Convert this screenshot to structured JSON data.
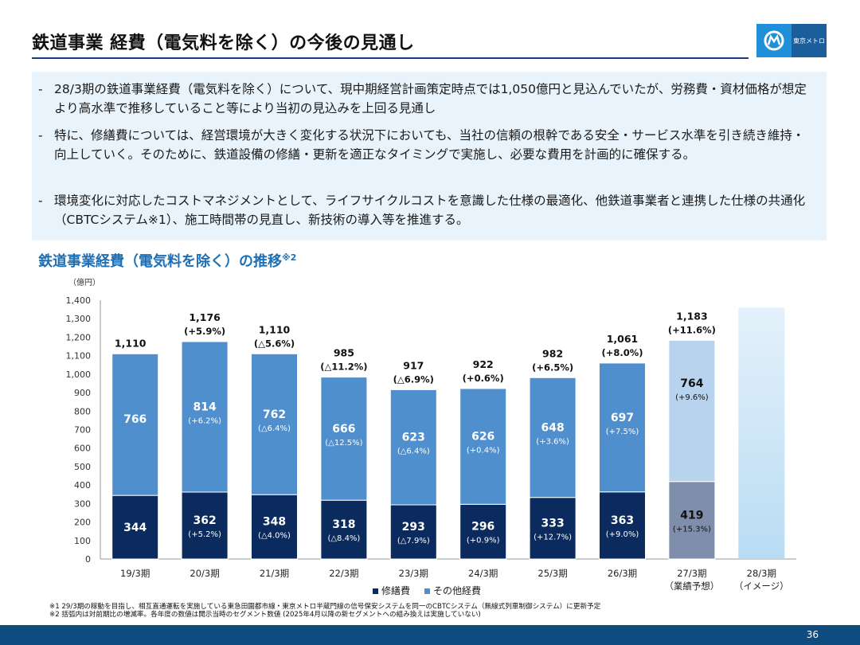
{
  "header": {
    "title": "鉄道事業 経費（電気料を除く）の今後の見通し",
    "logo_text": "東京メトロ"
  },
  "summary": {
    "dash": "-",
    "bullets": [
      "28/3期の鉄道事業経費（電気料を除く）について、現中期経営計画策定時点では1,050億円と見込んでいたが、労務費・資材価格が想定より高水準で推移していること等により当初の見込みを上回る見通し",
      "特に、修繕費については、経営環境が大きく変化する状況下においても、当社の信頼の根幹である安全・サービス水準を引き続き維持・向上していく。そのために、鉄道設備の修繕・更新を適正なタイミングで実施し、必要な費用を計画的に確保する。",
      "環境変化に対応したコストマネジメントとして、ライフサイクルコストを意識した仕様の最適化、他鉄道事業者と連携した仕様の共通化（CBTCシステム※1）、施工時間帯の見直し、新技術の導入等を推進する。"
    ]
  },
  "chart_title": "鉄道事業経費（電気料を除く）の推移",
  "chart_title_note": "※2",
  "chart_data": {
    "type": "bar",
    "stacked": true,
    "unit_label": "（億円）",
    "ylim": [
      0,
      1400
    ],
    "yticks": [
      "0",
      "100",
      "200",
      "300",
      "400",
      "500",
      "600",
      "700",
      "800",
      "900",
      "1,000",
      "1,100",
      "1,200",
      "1,300",
      "1,400"
    ],
    "categories": [
      "19/3期",
      "20/3期",
      "21/3期",
      "22/3期",
      "23/3期",
      "24/3期",
      "25/3期",
      "26/3期",
      "27/3期",
      "28/3期"
    ],
    "category_sublabels": [
      "",
      "",
      "",
      "",
      "",
      "",
      "",
      "",
      "（業績予想）",
      "（イメージ）"
    ],
    "series": [
      {
        "name": "修繕費",
        "values": [
          344,
          362,
          348,
          318,
          293,
          296,
          333,
          363,
          419,
          null
        ],
        "labels": [
          "344",
          "362",
          "348",
          "318",
          "293",
          "296",
          "333",
          "363",
          "419",
          ""
        ],
        "changes": [
          "",
          "(+5.2%)",
          "(△4.0%)",
          "(△8.4%)",
          "(△7.9%)",
          "(+0.9%)",
          "(+12.7%)",
          "(+9.0%)",
          "(+15.3%)",
          ""
        ]
      },
      {
        "name": "その他経費",
        "values": [
          766,
          814,
          762,
          666,
          623,
          626,
          648,
          697,
          764,
          null
        ],
        "labels": [
          "766",
          "814",
          "762",
          "666",
          "623",
          "626",
          "648",
          "697",
          "764",
          ""
        ],
        "changes": [
          "",
          "(+6.2%)",
          "(△6.4%)",
          "(△12.5%)",
          "(△6.4%)",
          "(+0.4%)",
          "(+3.6%)",
          "(+7.5%)",
          "(+9.6%)",
          ""
        ]
      }
    ],
    "totals": [
      1110,
      1176,
      1110,
      985,
      917,
      922,
      982,
      1061,
      1183,
      null
    ],
    "total_labels": [
      "1,110",
      "1,176",
      "1,110",
      "985",
      "917",
      "922",
      "982",
      "1,061",
      "1,183",
      ""
    ],
    "total_changes": [
      "",
      "(+5.9%)",
      "(△5.6%)",
      "(△11.2%)",
      "(△6.9%)",
      "(+0.6%)",
      "(+6.5%)",
      "(+8.0%)",
      "(+11.6%)",
      ""
    ],
    "legend_position": "bottom",
    "grid": false,
    "colors": {
      "repair": "#0b2a5e",
      "other": "#4f8fcd",
      "forecast_repair": "#7f8eaa",
      "forecast_other": "#b7d3ee",
      "image_bar_top": "#e4f1fb",
      "image_bar_bottom": "#b9dcf3"
    }
  },
  "legend": [
    {
      "label": "修繕費",
      "color": "#0b2a5e"
    },
    {
      "label": "その他経費",
      "color": "#4f8fcd"
    }
  ],
  "notes": [
    "※1 29/3期の稼動を目指し、相互直通運転を実施している東急田園都市線・東京メトロ半蔵門線の信号保安システムを同一のCBTCシステム（無線式列車制御システム）に更新予定",
    "※2 括弧内は対前期比の増減率。各年度の数値は開示当時のセグメント数値 (2025年4月以降の新セグメントへの組み換えは実施していない)"
  ],
  "page_number": "36"
}
